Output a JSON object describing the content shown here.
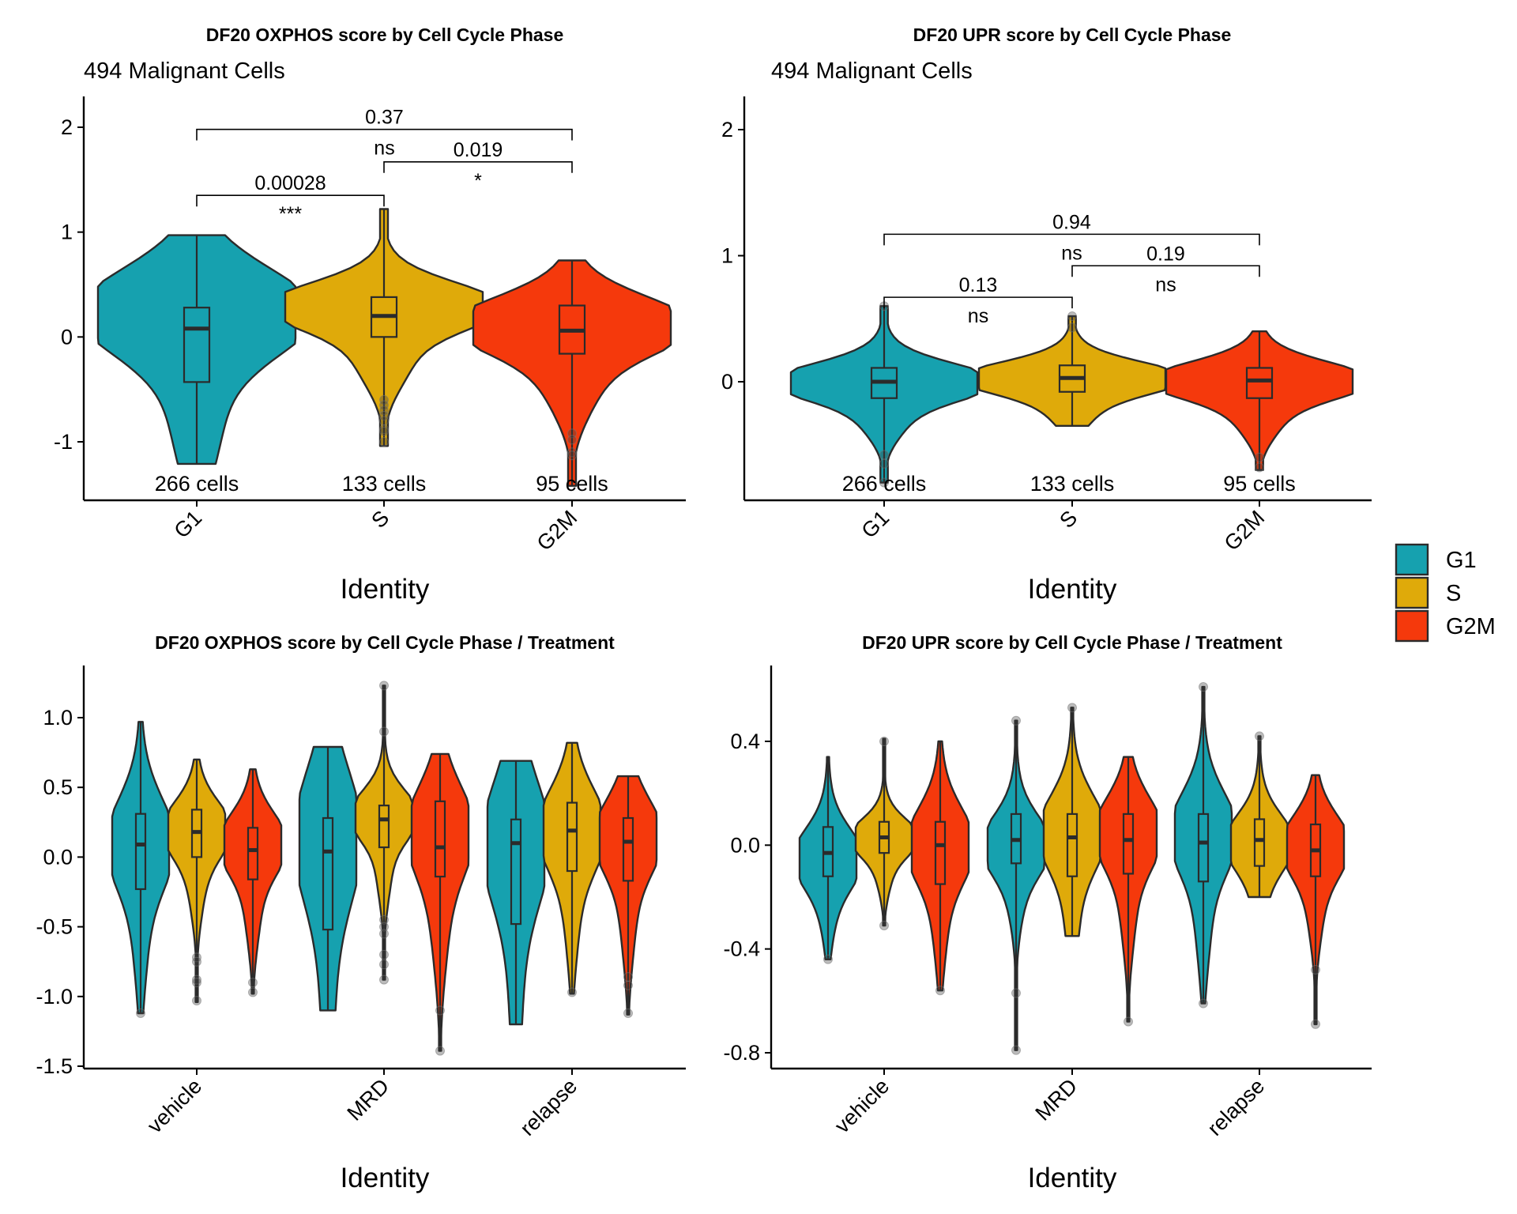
{
  "chart_data": [
    {
      "id": "p1",
      "type": "violin",
      "title": "DF20 OXPHOS score by Cell Cycle Phase",
      "subtitle": "494 Malignant Cells",
      "xlabel": "Identity",
      "ylabel": "",
      "ylim": [
        -1.55,
        2.3
      ],
      "yticks": [
        2,
        1,
        0,
        -1
      ],
      "ytick_labels": [
        "2",
        "1",
        "0",
        "-1"
      ],
      "categories": [
        "G1",
        "S",
        "G2M"
      ],
      "cell_counts": [
        "266 cells",
        "133 cells",
        "95 cells"
      ],
      "series": [
        {
          "name": "G1",
          "min": -1.21,
          "q1": -0.43,
          "median": 0.08,
          "q3": 0.28,
          "max": 0.97,
          "mode": 0.25,
          "outliers": []
        },
        {
          "name": "S",
          "min": -1.04,
          "q1": 0.0,
          "median": 0.2,
          "q3": 0.38,
          "max": 1.22,
          "mode": 0.3,
          "outliers": [
            -0.6,
            -0.65,
            -0.7,
            -0.75,
            -0.8,
            -0.88,
            -0.9,
            -1.0
          ]
        },
        {
          "name": "G2M",
          "min": -1.42,
          "q1": -0.16,
          "median": 0.06,
          "q3": 0.3,
          "max": 0.73,
          "mode": 0.12,
          "outliers": [
            -0.92,
            -0.98,
            -1.1,
            -1.13
          ]
        }
      ],
      "comparisons": [
        {
          "from": "G1",
          "to": "S",
          "p": "0.00028",
          "sig": "***"
        },
        {
          "from": "S",
          "to": "G2M",
          "p": "0.019",
          "sig": "*"
        },
        {
          "from": "G1",
          "to": "G2M",
          "p": "0.37",
          "sig": "ns"
        }
      ]
    },
    {
      "id": "p2",
      "type": "violin",
      "title": "DF20 UPR score by Cell Cycle Phase",
      "subtitle": "494 Malignant Cells",
      "xlabel": "Identity",
      "ylabel": "",
      "ylim": [
        -0.95,
        2.25
      ],
      "yticks": [
        2,
        1,
        0
      ],
      "ytick_labels": [
        "2",
        "1",
        "0"
      ],
      "categories": [
        "G1",
        "S",
        "G2M"
      ],
      "cell_counts": [
        "266 cells",
        "133 cells",
        "95 cells"
      ],
      "series": [
        {
          "name": "G1",
          "min": -0.8,
          "q1": -0.13,
          "median": 0.0,
          "q3": 0.11,
          "max": 0.6,
          "mode": 0.0,
          "outliers": [
            -0.58,
            -0.65,
            -0.8,
            0.6
          ]
        },
        {
          "name": "S",
          "min": -0.35,
          "q1": -0.08,
          "median": 0.03,
          "q3": 0.13,
          "max": 0.52,
          "mode": 0.03,
          "outliers": [
            0.43,
            0.52
          ]
        },
        {
          "name": "G2M",
          "min": -0.7,
          "q1": -0.13,
          "median": 0.01,
          "q3": 0.11,
          "max": 0.4,
          "mode": 0.01,
          "outliers": [
            -0.6,
            -0.68
          ]
        }
      ],
      "comparisons": [
        {
          "from": "G1",
          "to": "S",
          "p": "0.13",
          "sig": "ns"
        },
        {
          "from": "S",
          "to": "G2M",
          "p": "0.19",
          "sig": "ns"
        },
        {
          "from": "G1",
          "to": "G2M",
          "p": "0.94",
          "sig": "ns"
        }
      ]
    },
    {
      "id": "p3",
      "type": "violin",
      "title": "DF20 OXPHOS score by Cell Cycle Phase / Treatment",
      "xlabel": "Identity",
      "ylabel": "",
      "ylim": [
        -1.52,
        1.37
      ],
      "yticks": [
        1.0,
        0.5,
        0.0,
        -0.5,
        -1.0,
        -1.5
      ],
      "ytick_labels": [
        "1.0",
        "0.5",
        "0.0",
        "-0.5",
        "-1.0",
        "-1.5"
      ],
      "categories": [
        "vehicle",
        "MRD",
        "relapse"
      ],
      "groups": [
        "G1",
        "S",
        "G2M"
      ],
      "series": [
        {
          "name": "G1",
          "values": [
            {
              "min": -1.12,
              "q1": -0.23,
              "median": 0.09,
              "q3": 0.31,
              "max": 0.97,
              "mode": 0.1,
              "outliers": [
                -1.12
              ]
            },
            {
              "min": -1.1,
              "q1": -0.52,
              "median": 0.04,
              "q3": 0.28,
              "max": 0.79,
              "mode": 0.15,
              "outliers": []
            },
            {
              "min": -1.2,
              "q1": -0.48,
              "median": 0.1,
              "q3": 0.27,
              "max": 0.69,
              "mode": 0.1,
              "outliers": []
            }
          ]
        },
        {
          "name": "S",
          "values": [
            {
              "min": -1.04,
              "q1": 0.0,
              "median": 0.18,
              "q3": 0.34,
              "max": 0.7,
              "mode": 0.2,
              "outliers": [
                -0.72,
                -0.75,
                -0.88,
                -0.9,
                -1.03
              ]
            },
            {
              "min": -0.88,
              "q1": 0.07,
              "median": 0.27,
              "q3": 0.37,
              "max": 1.23,
              "mode": 0.3,
              "outliers": [
                -0.45,
                -0.5,
                -0.55,
                -0.7,
                -0.77,
                -0.88,
                0.9,
                1.23
              ]
            },
            {
              "min": -0.98,
              "q1": -0.1,
              "median": 0.19,
              "q3": 0.39,
              "max": 0.82,
              "mode": 0.2,
              "outliers": [
                -0.97
              ]
            }
          ]
        },
        {
          "name": "G2M",
          "values": [
            {
              "min": -0.98,
              "q1": -0.16,
              "median": 0.05,
              "q3": 0.21,
              "max": 0.63,
              "mode": 0.1,
              "outliers": [
                -0.9,
                -0.97
              ]
            },
            {
              "min": -1.39,
              "q1": -0.14,
              "median": 0.07,
              "q3": 0.4,
              "max": 0.74,
              "mode": 0.2,
              "outliers": [
                -1.1,
                -1.39
              ]
            },
            {
              "min": -1.13,
              "q1": -0.17,
              "median": 0.11,
              "q3": 0.28,
              "max": 0.58,
              "mode": 0.15,
              "outliers": [
                -0.86,
                -0.92,
                -1.12
              ]
            }
          ]
        }
      ]
    },
    {
      "id": "p4",
      "type": "violin",
      "title": "DF20 UPR score by Cell Cycle Phase / Treatment",
      "xlabel": "Identity",
      "ylabel": "",
      "ylim": [
        -0.86,
        0.68
      ],
      "yticks": [
        0.4,
        0.0,
        -0.4,
        -0.8
      ],
      "ytick_labels": [
        "0.4",
        "0.0",
        "-0.4",
        "-0.8"
      ],
      "categories": [
        "vehicle",
        "MRD",
        "relapse"
      ],
      "groups": [
        "G1",
        "S",
        "G2M"
      ],
      "series": [
        {
          "name": "G1",
          "values": [
            {
              "min": -0.44,
              "q1": -0.12,
              "median": -0.03,
              "q3": 0.07,
              "max": 0.34,
              "mode": -0.05,
              "outliers": [
                -0.44
              ]
            },
            {
              "min": -0.79,
              "q1": -0.07,
              "median": 0.02,
              "q3": 0.12,
              "max": 0.48,
              "mode": 0.0,
              "outliers": [
                -0.57,
                -0.79,
                0.48
              ]
            },
            {
              "min": -0.61,
              "q1": -0.14,
              "median": 0.01,
              "q3": 0.12,
              "max": 0.61,
              "mode": 0.05,
              "outliers": [
                -0.61,
                0.61
              ]
            }
          ]
        },
        {
          "name": "S",
          "values": [
            {
              "min": -0.31,
              "q1": -0.03,
              "median": 0.03,
              "q3": 0.09,
              "max": 0.41,
              "mode": 0.03,
              "outliers": [
                -0.31,
                0.4
              ]
            },
            {
              "min": -0.35,
              "q1": -0.12,
              "median": 0.03,
              "q3": 0.12,
              "max": 0.53,
              "mode": 0.05,
              "outliers": [
                0.53
              ]
            },
            {
              "min": -0.2,
              "q1": -0.08,
              "median": 0.02,
              "q3": 0.1,
              "max": 0.42,
              "mode": 0.01,
              "outliers": [
                0.42
              ]
            }
          ]
        },
        {
          "name": "G2M",
          "values": [
            {
              "min": -0.56,
              "q1": -0.15,
              "median": 0.0,
              "q3": 0.09,
              "max": 0.4,
              "mode": 0.0,
              "outliers": [
                -0.56
              ]
            },
            {
              "min": -0.68,
              "q1": -0.11,
              "median": 0.02,
              "q3": 0.12,
              "max": 0.34,
              "mode": 0.05,
              "outliers": [
                -0.68
              ]
            },
            {
              "min": -0.69,
              "q1": -0.12,
              "median": -0.02,
              "q3": 0.08,
              "max": 0.27,
              "mode": 0.0,
              "outliers": [
                -0.48,
                -0.69
              ]
            }
          ]
        }
      ]
    }
  ],
  "legend": {
    "position": "right",
    "items": [
      {
        "label": "G1",
        "color": "#16A1AF"
      },
      {
        "label": "S",
        "color": "#DFAA0A"
      },
      {
        "label": "G2M",
        "color": "#F5390C"
      }
    ]
  },
  "colors": {
    "G1": "#16A1AF",
    "S": "#DFAA0A",
    "G2M": "#F5390C",
    "outline": "#2b2b2b"
  }
}
